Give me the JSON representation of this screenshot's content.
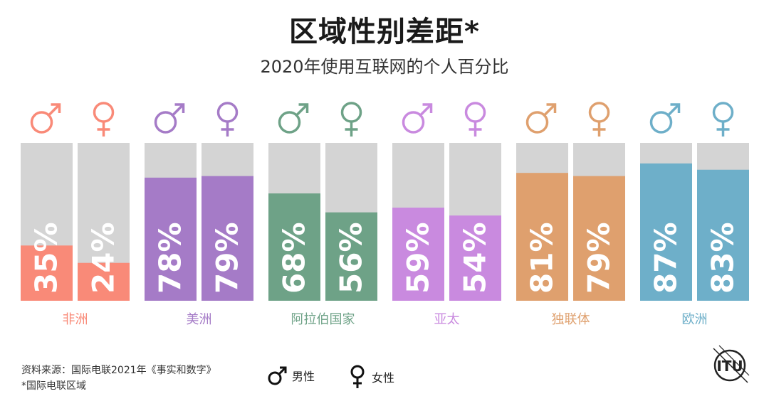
{
  "title": "区域性别差距*",
  "subtitle": "2020年使用互联网的个人百分比",
  "legend": {
    "male": "男性",
    "female": "女性"
  },
  "source": "资料来源：国际电联2021年《事实和数字》",
  "note": "*国际电联区域",
  "logo_text": "ITU",
  "colors": {
    "track": "#d4d4d4"
  },
  "chart_data": {
    "type": "bar",
    "ylim": [
      0,
      100
    ],
    "series_names": [
      "男性",
      "女性"
    ],
    "regions": [
      {
        "name": "非洲",
        "color": "#f98a78",
        "male": 35,
        "female": 24,
        "male_label": "35%",
        "female_label": "24%"
      },
      {
        "name": "美洲",
        "color": "#a57bc7",
        "male": 78,
        "female": 79,
        "male_label": "78%",
        "female_label": "79%"
      },
      {
        "name": "阿拉伯国家",
        "color": "#6ea287",
        "male": 68,
        "female": 56,
        "male_label": "68%",
        "female_label": "56%"
      },
      {
        "name": "亚太",
        "color": "#c98adf",
        "male": 59,
        "female": 54,
        "male_label": "59%",
        "female_label": "54%"
      },
      {
        "name": "独联体",
        "color": "#dfa06e",
        "male": 81,
        "female": 79,
        "male_label": "81%",
        "female_label": "79%"
      },
      {
        "name": "欧洲",
        "color": "#6eafc9",
        "male": 87,
        "female": 83,
        "male_label": "87%",
        "female_label": "83%"
      }
    ]
  }
}
